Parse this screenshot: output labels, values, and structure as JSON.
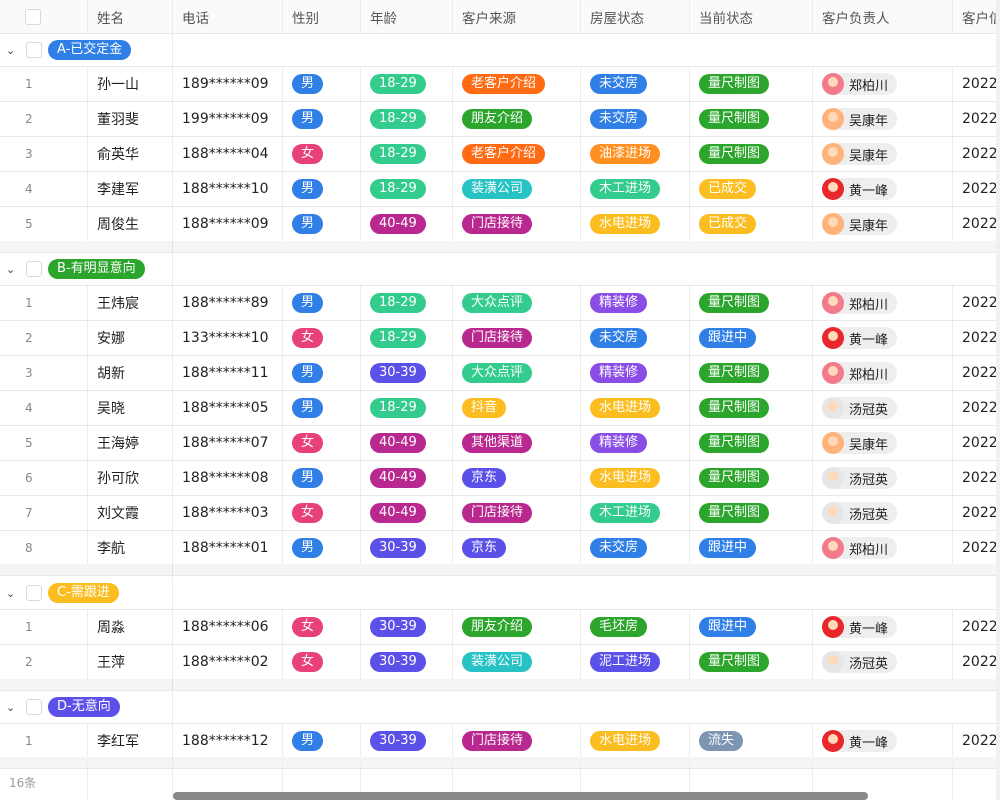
{
  "columns": [
    "姓名",
    "电话",
    "性别",
    "年龄",
    "客户来源",
    "房屋状态",
    "当前状态",
    "客户负责人",
    "客户信"
  ],
  "colors": {
    "blue": "#2f7fe6",
    "pink": "#e8407a",
    "mint": "#33cc8c",
    "magenta": "#b9288f",
    "indigo": "#5b50e8",
    "orange": "#ff6a13",
    "green": "#2ba52c",
    "teal": "#26c2c4",
    "amber": "#ff8f1f",
    "yellow": "#fbbd1f",
    "purple": "#8a4de6",
    "slate": "#7d94b3"
  },
  "tag_colors": {
    "男": "blue",
    "女": "pink",
    "18-29": "mint",
    "30-39": "indigo",
    "40-49": "magenta",
    "老客户介绍": "orange",
    "朋友介绍": "green",
    "装潢公司": "teal",
    "门店接待": "magenta",
    "大众点评": "mint",
    "抖音": "yellow",
    "其他渠道": "magenta",
    "京东": "indigo",
    "未交房": "blue",
    "油漆进场": "amber",
    "木工进场": "mint",
    "水电进场": "yellow",
    "精装修": "purple",
    "毛坯房": "green",
    "泥工进场": "indigo",
    "量尺制图": "green",
    "已成交": "yellow",
    "跟进中": "blue",
    "流失": "slate"
  },
  "avatar_colors": {
    "郑柏川": "#f27a8a",
    "吴康年": "#ffb27a",
    "黄一峰": "#e8262c",
    "汤冠英": "#e6e6e6"
  },
  "groups": [
    {
      "label": "A-已交定金",
      "color": "blue",
      "rows": [
        [
          "1",
          "孙一山",
          "189******09",
          "男",
          "18-29",
          "老客户介绍",
          "未交房",
          "量尺制图",
          "郑柏川",
          "2022"
        ],
        [
          "2",
          "董羽斐",
          "199******09",
          "男",
          "18-29",
          "朋友介绍",
          "未交房",
          "量尺制图",
          "吴康年",
          "2022"
        ],
        [
          "3",
          "俞英华",
          "188******04",
          "女",
          "18-29",
          "老客户介绍",
          "油漆进场",
          "量尺制图",
          "吴康年",
          "2022"
        ],
        [
          "4",
          "李建军",
          "188******10",
          "男",
          "18-29",
          "装潢公司",
          "木工进场",
          "已成交",
          "黄一峰",
          "2022"
        ],
        [
          "5",
          "周俊生",
          "188******09",
          "男",
          "40-49",
          "门店接待",
          "水电进场",
          "已成交",
          "吴康年",
          "2022"
        ]
      ]
    },
    {
      "label": "B-有明显意向",
      "color": "green",
      "rows": [
        [
          "1",
          "王炜宸",
          "188******89",
          "男",
          "18-29",
          "大众点评",
          "精装修",
          "量尺制图",
          "郑柏川",
          "2022"
        ],
        [
          "2",
          "安娜",
          "133******10",
          "女",
          "18-29",
          "门店接待",
          "未交房",
          "跟进中",
          "黄一峰",
          "2022"
        ],
        [
          "3",
          "胡新",
          "188******11",
          "男",
          "30-39",
          "大众点评",
          "精装修",
          "量尺制图",
          "郑柏川",
          "2022"
        ],
        [
          "4",
          "吴晓",
          "188******05",
          "男",
          "18-29",
          "抖音",
          "水电进场",
          "量尺制图",
          "汤冠英",
          "2022"
        ],
        [
          "5",
          "王海婷",
          "188******07",
          "女",
          "40-49",
          "其他渠道",
          "精装修",
          "量尺制图",
          "吴康年",
          "2022"
        ],
        [
          "6",
          "孙可欣",
          "188******08",
          "男",
          "40-49",
          "京东",
          "水电进场",
          "量尺制图",
          "汤冠英",
          "2022"
        ],
        [
          "7",
          "刘文霞",
          "188******03",
          "女",
          "40-49",
          "门店接待",
          "木工进场",
          "量尺制图",
          "汤冠英",
          "2022"
        ],
        [
          "8",
          "李航",
          "188******01",
          "男",
          "30-39",
          "京东",
          "未交房",
          "跟进中",
          "郑柏川",
          "2022"
        ]
      ]
    },
    {
      "label": "C-需跟进",
      "color": "yellow",
      "rows": [
        [
          "1",
          "周淼",
          "188******06",
          "女",
          "30-39",
          "朋友介绍",
          "毛坯房",
          "跟进中",
          "黄一峰",
          "2022"
        ],
        [
          "2",
          "王萍",
          "188******02",
          "女",
          "30-39",
          "装潢公司",
          "泥工进场",
          "量尺制图",
          "汤冠英",
          "2022"
        ]
      ]
    },
    {
      "label": "D-无意向",
      "color": "indigo",
      "rows": [
        [
          "1",
          "李红军",
          "188******12",
          "男",
          "30-39",
          "门店接待",
          "水电进场",
          "流失",
          "黄一峰",
          "2022"
        ]
      ]
    }
  ],
  "footer": {
    "count": "16条"
  }
}
